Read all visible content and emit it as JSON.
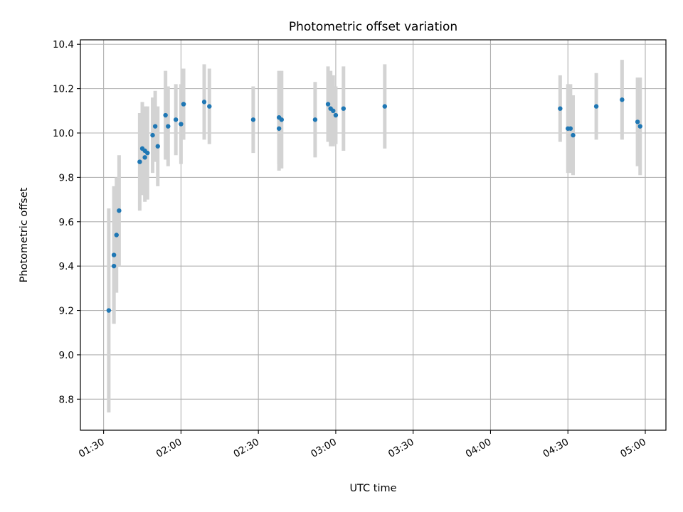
{
  "chart_data": {
    "type": "scatter",
    "title": "Photometric offset variation",
    "xlabel": "UTC time",
    "ylabel": "Photometric offset",
    "x_ticks": [
      "01:30",
      "02:00",
      "02:30",
      "03:00",
      "03:30",
      "04:00",
      "04:30",
      "05:00"
    ],
    "y_ticks": [
      "8.8",
      "9.0",
      "9.2",
      "9.4",
      "9.6",
      "9.8",
      "10.0",
      "10.2",
      "10.4"
    ],
    "xlim": [
      "01:21",
      "05:08"
    ],
    "ylim": [
      8.66,
      10.42
    ],
    "grid": true,
    "series": [
      {
        "marker_color": "#1f77b4",
        "errorbar_color": "#d3d3d3",
        "points": [
          {
            "t": "01:32",
            "y": 9.2,
            "err": 0.46
          },
          {
            "t": "01:34",
            "y": 9.4,
            "err": 0.26
          },
          {
            "t": "01:34",
            "y": 9.45,
            "err": 0.31
          },
          {
            "t": "01:35",
            "y": 9.54,
            "err": 0.26
          },
          {
            "t": "01:36",
            "y": 9.65,
            "err": 0.25
          },
          {
            "t": "01:44",
            "y": 9.87,
            "err": 0.22
          },
          {
            "t": "01:45",
            "y": 9.93,
            "err": 0.21
          },
          {
            "t": "01:46",
            "y": 9.92,
            "err": 0.2
          },
          {
            "t": "01:46",
            "y": 9.89,
            "err": 0.2
          },
          {
            "t": "01:47",
            "y": 9.91,
            "err": 0.21
          },
          {
            "t": "01:49",
            "y": 9.99,
            "err": 0.17
          },
          {
            "t": "01:50",
            "y": 10.03,
            "err": 0.16
          },
          {
            "t": "01:51",
            "y": 9.94,
            "err": 0.18
          },
          {
            "t": "01:54",
            "y": 10.08,
            "err": 0.2
          },
          {
            "t": "01:55",
            "y": 10.03,
            "err": 0.18
          },
          {
            "t": "01:58",
            "y": 10.06,
            "err": 0.16
          },
          {
            "t": "02:00",
            "y": 10.04,
            "err": 0.18
          },
          {
            "t": "02:01",
            "y": 10.13,
            "err": 0.16
          },
          {
            "t": "02:01",
            "y": 10.13,
            "err": 0.16
          },
          {
            "t": "02:09",
            "y": 10.14,
            "err": 0.17
          },
          {
            "t": "02:11",
            "y": 10.12,
            "err": 0.17
          },
          {
            "t": "02:28",
            "y": 10.06,
            "err": 0.15
          },
          {
            "t": "02:38",
            "y": 10.02,
            "err": 0.19
          },
          {
            "t": "02:38",
            "y": 10.07,
            "err": 0.21
          },
          {
            "t": "02:39",
            "y": 10.06,
            "err": 0.22
          },
          {
            "t": "02:52",
            "y": 10.06,
            "err": 0.17
          },
          {
            "t": "02:57",
            "y": 10.13,
            "err": 0.17
          },
          {
            "t": "02:58",
            "y": 10.11,
            "err": 0.17
          },
          {
            "t": "02:59",
            "y": 10.1,
            "err": 0.16
          },
          {
            "t": "03:00",
            "y": 10.08,
            "err": 0.13
          },
          {
            "t": "03:03",
            "y": 10.11,
            "err": 0.19
          },
          {
            "t": "03:19",
            "y": 10.12,
            "err": 0.19
          },
          {
            "t": "04:27",
            "y": 10.11,
            "err": 0.15
          },
          {
            "t": "04:30",
            "y": 10.02,
            "err": 0.2
          },
          {
            "t": "04:31",
            "y": 10.02,
            "err": 0.2
          },
          {
            "t": "04:32",
            "y": 9.99,
            "err": 0.18
          },
          {
            "t": "04:41",
            "y": 10.12,
            "err": 0.15
          },
          {
            "t": "04:51",
            "y": 10.15,
            "err": 0.18
          },
          {
            "t": "04:57",
            "y": 10.05,
            "err": 0.2
          },
          {
            "t": "04:58",
            "y": 10.03,
            "err": 0.22
          }
        ]
      }
    ]
  },
  "colors": {
    "marker": "#1f77b4",
    "errorbar": "#d3d3d3",
    "grid": "#b0b0b0",
    "axes": "#000000"
  }
}
